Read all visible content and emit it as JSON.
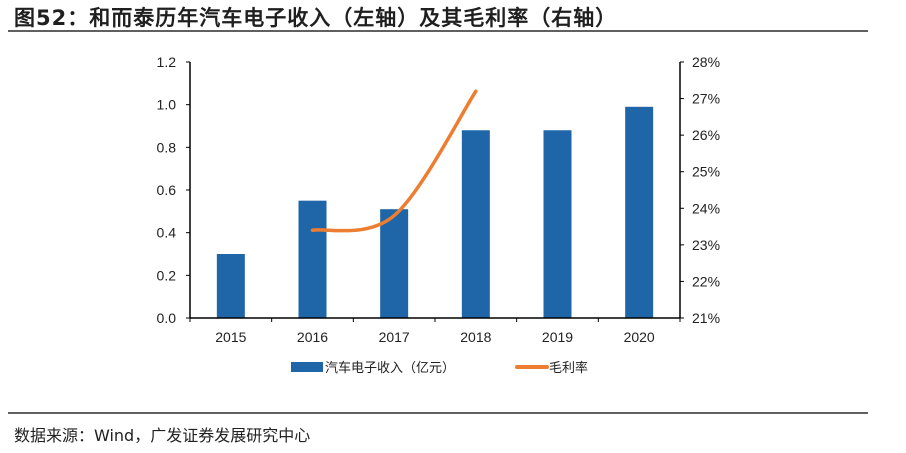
{
  "title": "图52：和而泰历年汽车电子收入（左轴）及其毛利率（右轴）",
  "source": "数据来源：Wind，广发证券发展研究中心",
  "chart_data": {
    "type": "bar+line",
    "title": "图52：和而泰历年汽车电子收入（左轴）及其毛利率（右轴）",
    "categories": [
      "2015",
      "2016",
      "2017",
      "2018",
      "2019",
      "2020"
    ],
    "y_left": {
      "lim": [
        0,
        1.2
      ],
      "ticks": [
        "0.0",
        "0.2",
        "0.4",
        "0.6",
        "0.8",
        "1.0",
        "1.2"
      ]
    },
    "y_right": {
      "lim": [
        21,
        28
      ],
      "ticks": [
        "21%",
        "22%",
        "23%",
        "24%",
        "25%",
        "26%",
        "27%",
        "28%"
      ]
    },
    "series": [
      {
        "name": "汽车电子收入（亿元）",
        "type": "bar",
        "axis": "left",
        "color": "#1f66a8",
        "values": [
          0.3,
          0.55,
          0.51,
          0.88,
          0.88,
          0.99
        ]
      },
      {
        "name": "毛利率",
        "type": "line",
        "axis": "right",
        "smooth": true,
        "color": "#ed7d31",
        "values": [
          null,
          23.4,
          23.8,
          27.2,
          null,
          null
        ]
      }
    ],
    "legend": "bottom",
    "grid": false
  }
}
